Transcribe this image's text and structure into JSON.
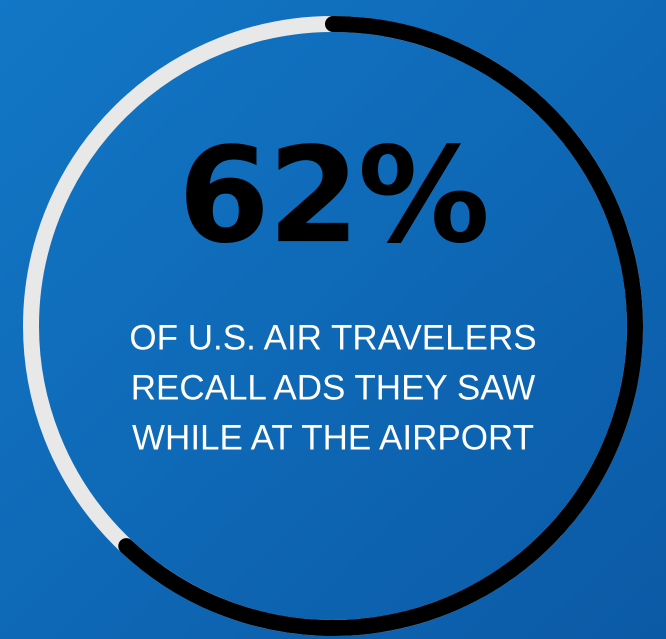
{
  "chart_data": {
    "type": "ring",
    "values": [
      62
    ],
    "value_labels": [
      "62%"
    ],
    "ylim": [
      0,
      100
    ],
    "color": "#000000",
    "track_color": "#e8e8e8",
    "text": [
      "OF U.S. AIR TRAVELERS",
      "RECALL ADS THEY SAW",
      "WHILE AT THE AIRPORT"
    ]
  }
}
